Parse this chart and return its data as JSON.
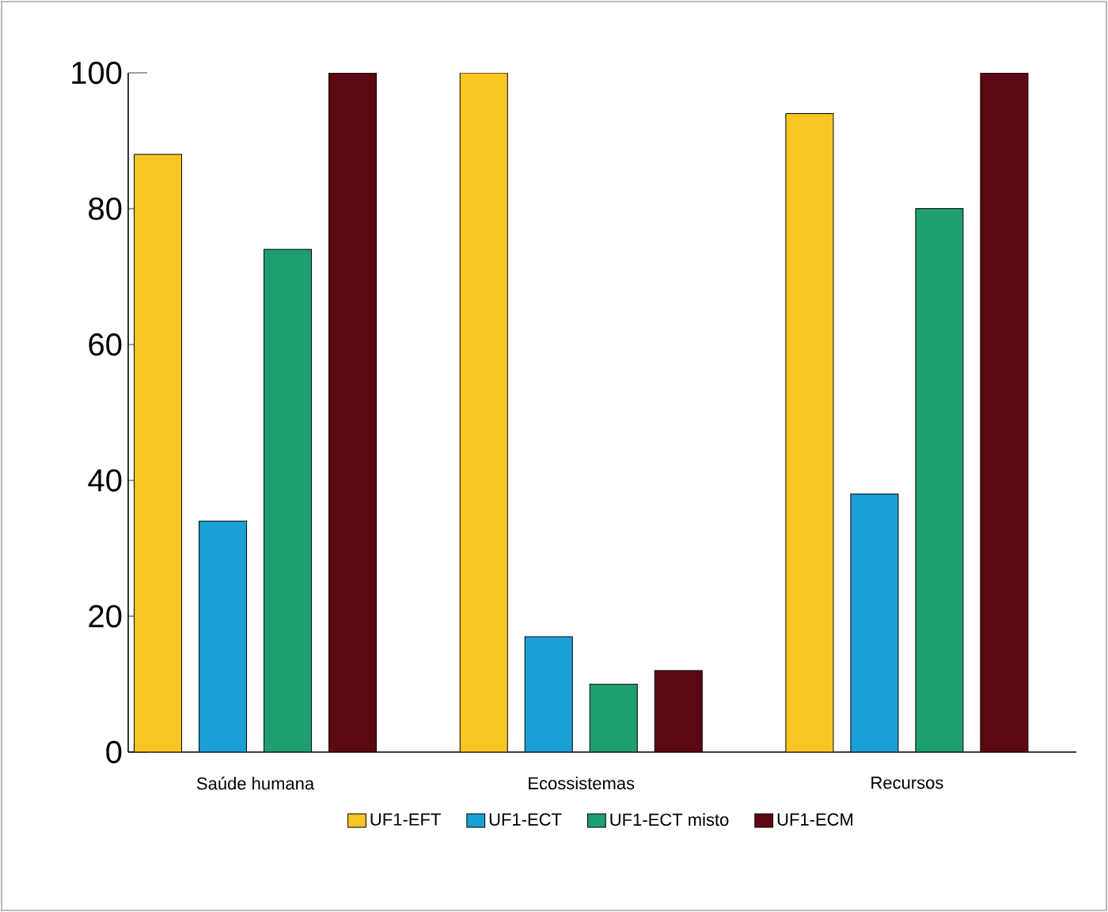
{
  "chart_data": {
    "type": "bar",
    "categories": [
      "Saúde humana",
      "Ecossistemas",
      "Recursos"
    ],
    "series": [
      {
        "name": "UF1-EFT",
        "color": "#f9c623",
        "values": [
          88,
          100,
          94
        ]
      },
      {
        "name": "UF1-ECT",
        "color": "#1a9fd6",
        "values": [
          34,
          17,
          38
        ]
      },
      {
        "name": "UF1-ECT misto",
        "color": "#1f9e6e",
        "values": [
          74,
          10,
          80
        ]
      },
      {
        "name": "UF1-ECM",
        "color": "#5c0812",
        "values": [
          100,
          12,
          100
        ]
      }
    ],
    "ylim": [
      0,
      100
    ],
    "yticks": [
      0,
      20,
      40,
      60,
      80,
      100
    ],
    "grid": false,
    "legend": "bottom"
  }
}
